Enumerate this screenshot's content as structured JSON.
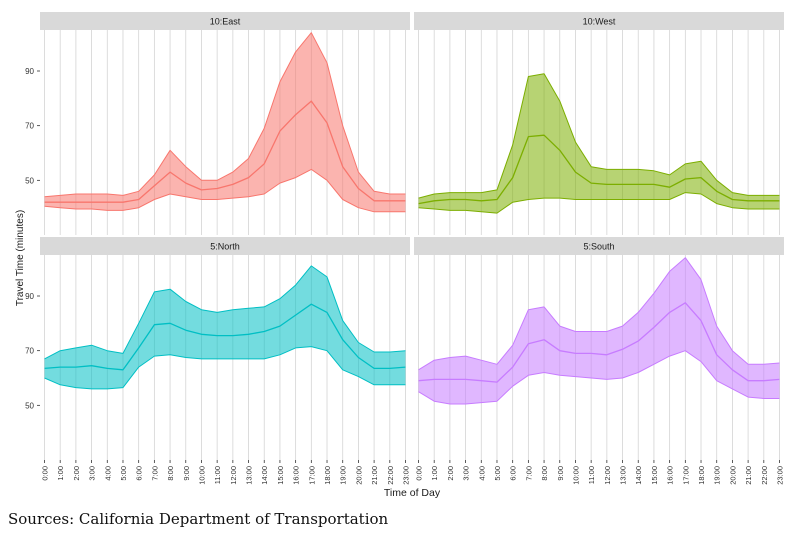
{
  "figure": {
    "ylabel": "Travel Time (minutes)",
    "xlabel": "Time of Day",
    "source": "Sources: California Department of Transportation"
  },
  "chart_data": {
    "type": "area",
    "x": [
      "0:00",
      "1:00",
      "2:00",
      "3:00",
      "4:00",
      "5:00",
      "6:00",
      "7:00",
      "8:00",
      "9:00",
      "10:00",
      "11:00",
      "12:00",
      "13:00",
      "14:00",
      "15:00",
      "16:00",
      "17:00",
      "18:00",
      "19:00",
      "20:00",
      "21:00",
      "22:00",
      "23:00"
    ],
    "ylim": [
      30,
      105
    ],
    "yticks": [
      50,
      70,
      90
    ],
    "grid": true,
    "facets": [
      {
        "title": "10:East",
        "color": "#f8766d",
        "upper": [
          44,
          44.5,
          45,
          45,
          45,
          44.5,
          46,
          52,
          61,
          55,
          50,
          50,
          53,
          58,
          69,
          86,
          97,
          104,
          93,
          70,
          53,
          46,
          45,
          45
        ],
        "middle": [
          42,
          42,
          42,
          42,
          42,
          42,
          43,
          48,
          53,
          49,
          46.5,
          47,
          48.5,
          51,
          56,
          68,
          74,
          79,
          71,
          55,
          47,
          42.5,
          42.5,
          42.5
        ],
        "lower": [
          40.5,
          40,
          39.5,
          39.5,
          39,
          39,
          40,
          43,
          45,
          44,
          43,
          43,
          43.5,
          44,
          45,
          49,
          51,
          54,
          50,
          43,
          40,
          38.5,
          38.5,
          38.5
        ]
      },
      {
        "title": "10:West",
        "color": "#7cae00",
        "upper": [
          43.5,
          45,
          45.5,
          45.5,
          45.5,
          46.5,
          63,
          88,
          89,
          79,
          64,
          55,
          54,
          54,
          54,
          53.5,
          52,
          56,
          57,
          50,
          45.5,
          44.5,
          44.5,
          44.5
        ],
        "middle": [
          41.5,
          42.5,
          43,
          43,
          42.5,
          43,
          51,
          66,
          66.5,
          61,
          53,
          49,
          48.5,
          48.5,
          48.5,
          48.5,
          47.5,
          50.5,
          51,
          46,
          43,
          42.5,
          42.5,
          42.5
        ],
        "lower": [
          40,
          39.5,
          39,
          39,
          38.5,
          38,
          42,
          43,
          43.5,
          43.5,
          43,
          43,
          43,
          43,
          43,
          43,
          43,
          45.5,
          45,
          41.5,
          40,
          39.5,
          39.5,
          39.5
        ]
      },
      {
        "title": "5:North",
        "color": "#00bfc4",
        "upper": [
          67,
          70,
          71,
          72,
          70,
          69,
          80,
          91.5,
          92.5,
          88,
          85,
          84,
          85,
          85.5,
          86,
          89,
          94,
          101,
          97,
          81,
          73,
          69.5,
          69.5,
          70
        ],
        "middle": [
          63.5,
          64,
          64,
          64.5,
          63.5,
          63,
          71,
          79.5,
          80,
          77.5,
          76,
          75.5,
          75.5,
          76,
          77,
          79,
          83,
          87,
          84,
          74,
          67.5,
          63.5,
          63.5,
          64
        ],
        "lower": [
          60,
          57.5,
          56.5,
          56,
          56,
          56.5,
          64,
          68,
          68.5,
          67.5,
          67,
          67,
          67,
          67,
          67,
          68.5,
          71,
          71.5,
          70,
          63,
          60.5,
          57.5,
          57.5,
          57.5
        ]
      },
      {
        "title": "5:South",
        "color": "#c77cff",
        "upper": [
          63,
          66.5,
          67.5,
          68,
          66.5,
          65,
          72,
          85,
          86,
          79,
          77,
          77,
          77,
          79,
          84,
          91,
          99,
          104,
          96,
          79,
          70,
          65,
          65,
          65.5
        ],
        "middle": [
          59,
          59.5,
          59.5,
          59.5,
          59,
          58.5,
          64,
          72.5,
          74,
          70,
          69,
          69,
          68.5,
          70.5,
          73.5,
          78.5,
          84,
          87.5,
          81,
          68.5,
          63,
          59,
          59,
          59.5
        ],
        "lower": [
          55,
          51.5,
          50.5,
          50.5,
          51,
          51.5,
          57,
          61,
          62,
          61,
          60.5,
          60,
          59.5,
          60,
          62,
          65,
          68,
          70,
          66,
          59,
          56,
          53,
          52.5,
          52.5
        ]
      }
    ]
  }
}
